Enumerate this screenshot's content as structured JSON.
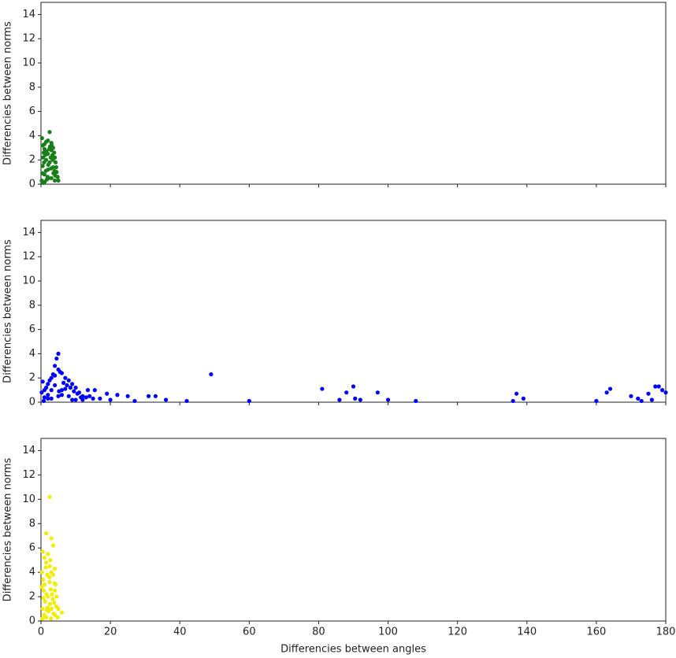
{
  "chart_data": [
    {
      "type": "scatter",
      "ylabel": "Differencies between norms",
      "xlim": [
        0,
        180
      ],
      "ylim": [
        0,
        15
      ],
      "xticks": [
        0,
        20,
        40,
        60,
        80,
        100,
        120,
        140,
        160,
        180
      ],
      "yticks": [
        0,
        2,
        4,
        6,
        8,
        10,
        12,
        14
      ],
      "series": [
        {
          "color": "#1a7f1a",
          "x": [
            0.3,
            0.5,
            1,
            1.5,
            2,
            2.5,
            3,
            3.5,
            4,
            4.5,
            5,
            0.5,
            1,
            2,
            3,
            4,
            1.5,
            2.5,
            3.5,
            0.2,
            1,
            2,
            3,
            4.2,
            4.8,
            1.2,
            2.8,
            3.8,
            0.8,
            2.2,
            0.4,
            1.4,
            2.4,
            3.4,
            4.4,
            0.9,
            1.9,
            2.9,
            3.9,
            0.6,
            1.6,
            2.6,
            3.6,
            4.1,
            1.1,
            2.1,
            3.1,
            0.7,
            1.7,
            3.3
          ],
          "values": [
            3.8,
            3.2,
            2.9,
            3.5,
            2.5,
            4.3,
            3.4,
            3.0,
            2.2,
            1.0,
            0.3,
            1.5,
            0.8,
            1.2,
            0.5,
            0.3,
            2.0,
            1.8,
            1.4,
            0.3,
            3.3,
            3.6,
            2.8,
            1.8,
            0.6,
            2.4,
            2.2,
            2.6,
            2.6,
            0.5,
            0.9,
            1.1,
            2.9,
            2.0,
            1.4,
            1.8,
            0.6,
            1.3,
            1.1,
            2.2,
            2.7,
            3.1,
            0.9,
            0.7,
            0.2,
            1.6,
            3.2,
            0.1,
            0.4,
            2.4
          ]
        }
      ]
    },
    {
      "type": "scatter",
      "ylabel": "Differencies between norms",
      "xlim": [
        0,
        180
      ],
      "ylim": [
        0,
        15
      ],
      "xticks": [
        0,
        20,
        40,
        60,
        80,
        100,
        120,
        140,
        160,
        180
      ],
      "yticks": [
        0,
        2,
        4,
        6,
        8,
        10,
        12,
        14
      ],
      "series": [
        {
          "color": "#0000ff",
          "x": [
            49,
            81,
            88,
            90,
            90.5,
            97,
            100,
            108,
            60,
            42,
            36,
            33,
            31,
            25,
            22,
            20,
            19,
            17,
            137,
            139,
            136,
            163,
            164,
            160,
            170,
            172,
            175,
            177,
            178,
            179,
            180,
            176,
            173,
            86,
            92,
            27,
            2,
            3,
            4,
            5,
            4.5,
            5,
            6,
            7,
            8,
            9,
            10,
            11,
            12,
            13,
            14,
            15,
            1,
            0.5,
            3,
            6,
            8,
            2,
            5,
            10,
            15.5,
            13.5,
            0.2,
            1.5,
            2.5,
            3.5,
            4,
            5.5,
            6.5,
            7.5,
            8.5,
            9.5,
            10.5,
            11.5,
            1,
            2,
            3,
            4,
            6,
            7,
            9,
            12,
            0.8,
            5.2
          ],
          "values": [
            2.3,
            1.1,
            0.8,
            1.3,
            0.3,
            0.8,
            0.2,
            0.1,
            0.1,
            0.1,
            0.2,
            0.5,
            0.5,
            0.5,
            0.6,
            0.2,
            0.7,
            0.3,
            0.7,
            0.3,
            0.1,
            0.8,
            1.1,
            0.1,
            0.5,
            0.3,
            0.7,
            1.3,
            1.3,
            1.0,
            0.8,
            0.2,
            0.1,
            0.2,
            0.2,
            0.1,
            1.5,
            2.0,
            3.0,
            4.0,
            3.6,
            2.7,
            2.4,
            2.0,
            1.8,
            1.5,
            1.2,
            0.8,
            0.5,
            0.4,
            0.5,
            0.3,
            1.0,
            1.7,
            1.0,
            1.0,
            0.5,
            0.3,
            0.5,
            0.2,
            1.0,
            1.0,
            0.8,
            1.2,
            1.8,
            2.3,
            2.2,
            2.5,
            1.6,
            1.4,
            1.2,
            0.9,
            0.7,
            0.4,
            0.4,
            0.6,
            0.3,
            1.4,
            0.6,
            1.1,
            0.2,
            0.2,
            0.1,
            0.9
          ]
        }
      ]
    },
    {
      "type": "scatter",
      "ylabel": "Differencies between norms",
      "xlabel": "Differencies between angles",
      "xlim": [
        0,
        180
      ],
      "ylim": [
        0,
        15
      ],
      "xticks": [
        0,
        20,
        40,
        60,
        80,
        100,
        120,
        140,
        160,
        180
      ],
      "yticks": [
        0,
        2,
        4,
        6,
        8,
        10,
        12,
        14
      ],
      "series": [
        {
          "color": "#f2ee00",
          "x": [
            2.5,
            1.5,
            3,
            3.5,
            2,
            1,
            0.5,
            1.5,
            2.5,
            4,
            3.5,
            4.2,
            4.5,
            5,
            6,
            0.3,
            1,
            2,
            3,
            4,
            0.5,
            1.5,
            2.5,
            3,
            4,
            0.8,
            1.8,
            2.8,
            3.8,
            4.8,
            0.4,
            1.2,
            2.2,
            3.2,
            0.6,
            1.6,
            2.6,
            3.6,
            0.2,
            1.4,
            2.4,
            3.4,
            4.4,
            0.9,
            1.9,
            2.9,
            3.9,
            0.7,
            1.7,
            2.7
          ],
          "values": [
            10.2,
            7.2,
            6.8,
            6.2,
            5.5,
            5.2,
            5.7,
            4.8,
            4.5,
            4.3,
            3.8,
            3.0,
            2.0,
            1.0,
            0.7,
            4.0,
            3.0,
            2.0,
            1.0,
            0.5,
            1.0,
            0.3,
            3.2,
            4.0,
            2.5,
            2.5,
            3.8,
            2.6,
            1.5,
            0.3,
            0.2,
            1.6,
            0.8,
            2.2,
            3.4,
            2.2,
            1.4,
            0.6,
            2.8,
            4.4,
            3.6,
            1.8,
            1.2,
            0.5,
            1.1,
            0.2,
            3.1,
            1.9,
            0.9,
            5.0
          ]
        }
      ]
    }
  ]
}
